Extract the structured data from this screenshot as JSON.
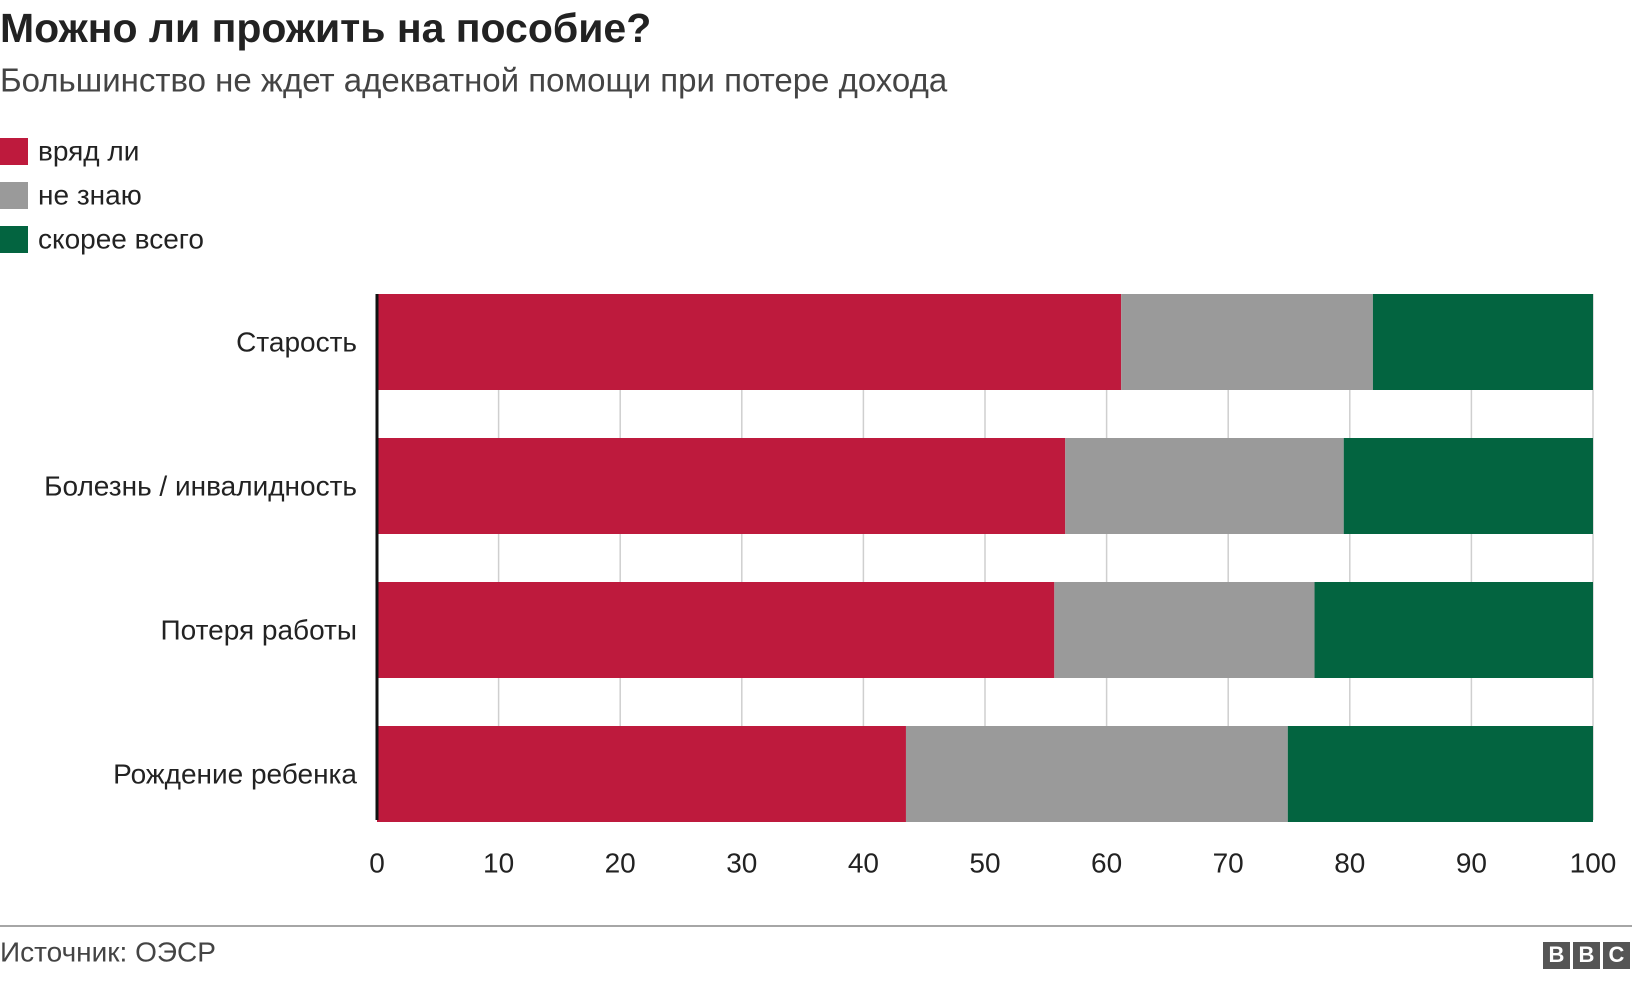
{
  "chart_data": {
    "type": "stacked-barh",
    "title": "Можно ли прожить на пособие?",
    "subtitle": "Большинство не ждет адекватной помощи при потере дохода",
    "categories": [
      "Старость",
      "Болезнь / инвалидность",
      "Потеря работы",
      "Рождение ребенка"
    ],
    "series": [
      {
        "name": "вряд ли",
        "color": "#be1a3d",
        "values": [
          61.2,
          56.6,
          55.7,
          43.5
        ]
      },
      {
        "name": "не знаю",
        "color": "#9a9a9a",
        "values": [
          20.7,
          22.9,
          21.4,
          31.4
        ]
      },
      {
        "name": "скорее всего",
        "color": "#036440",
        "values": [
          18.1,
          20.5,
          22.9,
          25.1
        ]
      }
    ],
    "xlim": [
      0,
      100
    ],
    "xticks": [
      0,
      10,
      20,
      30,
      40,
      50,
      60,
      70,
      80,
      90,
      100
    ],
    "grid": true,
    "legend": "top-left",
    "source": "Источник: ОЭСР",
    "logo": "BBC"
  }
}
